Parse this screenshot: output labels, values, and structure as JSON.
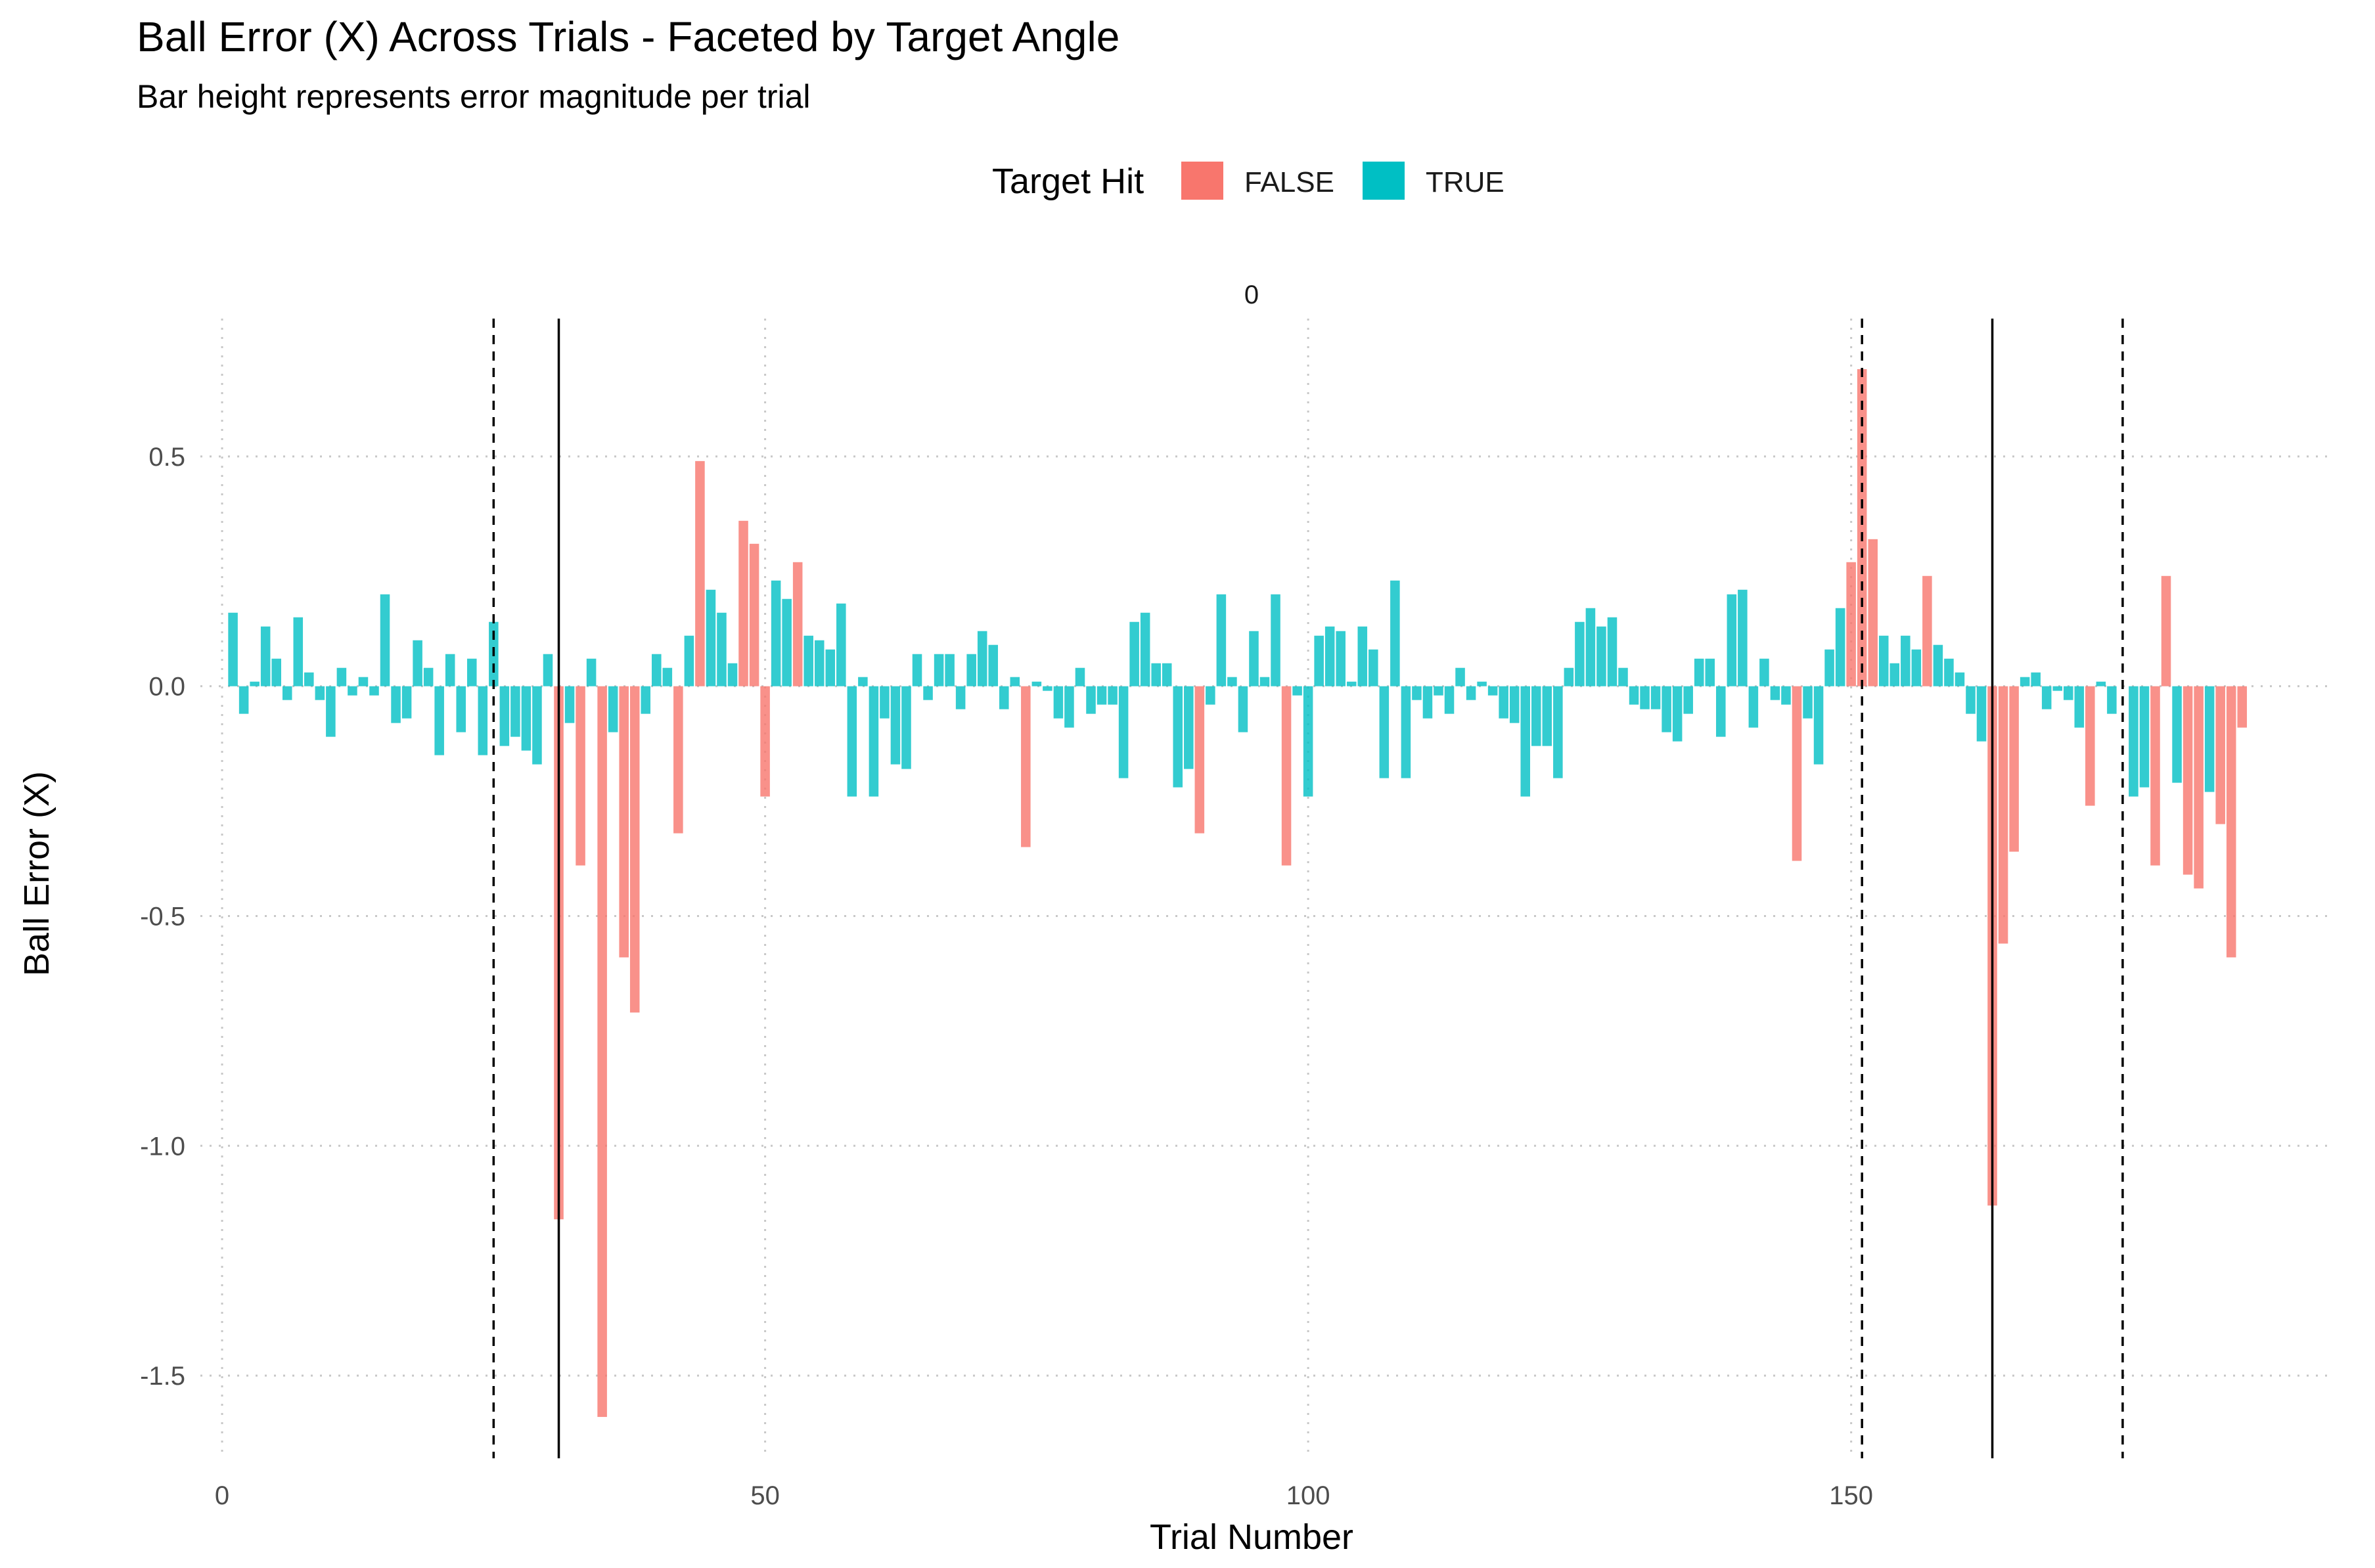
{
  "chart_data": {
    "type": "bar",
    "title": "Ball Error (X) Across Trials - Faceted by Target Angle",
    "subtitle": "Bar height represents error magnitude per trial",
    "facet_label": "0",
    "xlabel": "Trial Number",
    "ylabel": "Ball Error (X)",
    "xlim": [
      -2,
      194
    ],
    "ylim": [
      -1.68,
      0.8
    ],
    "x_ticks": [
      0,
      50,
      100,
      150
    ],
    "y_ticks": [
      0.5,
      0.0,
      -0.5,
      -1.0,
      -1.5
    ],
    "y_tick_labels": [
      "0.5",
      "0.0",
      "-0.5",
      "-1.0",
      "-1.5"
    ],
    "grid": "dotted major gridlines",
    "legend": {
      "title": "Target Hit",
      "position": "top",
      "entries": [
        {
          "label": "FALSE",
          "color": "#F8766D"
        },
        {
          "label": "TRUE",
          "color": "#00BFC4"
        }
      ]
    },
    "vlines": [
      {
        "x": 25,
        "style": "dashed"
      },
      {
        "x": 31,
        "style": "solid"
      },
      {
        "x": 151,
        "style": "dashed"
      },
      {
        "x": 163,
        "style": "solid"
      },
      {
        "x": 175,
        "style": "dashed"
      }
    ],
    "series": [
      {
        "name": "FALSE",
        "color": "#F8766D",
        "x": [
          31,
          33,
          35,
          37,
          38,
          42,
          44,
          48,
          49,
          50,
          53,
          74,
          90,
          98,
          145,
          150,
          151,
          152,
          157,
          163,
          164,
          165,
          172,
          178,
          179,
          181,
          182,
          184,
          185,
          186
        ],
        "values": [
          -1.16,
          -0.39,
          -1.59,
          -0.59,
          -0.71,
          -0.32,
          0.49,
          0.36,
          0.31,
          -0.24,
          0.27,
          -0.35,
          -0.32,
          -0.39,
          -0.38,
          0.27,
          0.69,
          0.32,
          0.24,
          -1.13,
          -0.56,
          -0.36,
          -0.26,
          -0.39,
          0.24,
          -0.41,
          -0.44,
          -0.3,
          -0.59,
          -0.09
        ]
      },
      {
        "name": "TRUE",
        "color": "#00BFC4",
        "x": [
          1,
          2,
          3,
          4,
          5,
          6,
          7,
          8,
          9,
          10,
          11,
          12,
          13,
          14,
          15,
          16,
          17,
          18,
          19,
          20,
          21,
          22,
          23,
          24,
          25,
          26,
          27,
          28,
          29,
          30,
          32,
          34,
          36,
          39,
          40,
          41,
          43,
          45,
          46,
          47,
          51,
          52,
          54,
          55,
          56,
          57,
          58,
          59,
          60,
          61,
          62,
          63,
          64,
          65,
          66,
          67,
          68,
          69,
          70,
          71,
          72,
          73,
          75,
          76,
          77,
          78,
          79,
          80,
          81,
          82,
          83,
          84,
          85,
          86,
          87,
          88,
          89,
          91,
          92,
          93,
          94,
          95,
          96,
          97,
          99,
          100,
          101,
          102,
          103,
          104,
          105,
          106,
          107,
          108,
          109,
          110,
          111,
          112,
          113,
          114,
          115,
          116,
          117,
          118,
          119,
          120,
          121,
          122,
          123,
          124,
          125,
          126,
          127,
          128,
          129,
          130,
          131,
          132,
          133,
          134,
          135,
          136,
          137,
          138,
          139,
          140,
          141,
          142,
          143,
          144,
          146,
          147,
          148,
          149,
          153,
          154,
          155,
          156,
          158,
          159,
          160,
          161,
          162,
          166,
          167,
          168,
          169,
          170,
          171,
          173,
          174,
          176,
          177,
          180,
          183
        ],
        "values": [
          0.16,
          -0.06,
          0.01,
          0.13,
          0.06,
          -0.03,
          0.15,
          0.03,
          -0.03,
          -0.11,
          0.04,
          -0.02,
          0.02,
          -0.02,
          0.2,
          -0.08,
          -0.07,
          0.1,
          0.04,
          -0.15,
          0.07,
          -0.1,
          0.06,
          -0.15,
          0.14,
          -0.13,
          -0.11,
          -0.14,
          -0.17,
          0.07,
          -0.08,
          0.06,
          -0.1,
          -0.06,
          0.07,
          0.04,
          0.11,
          0.21,
          0.16,
          0.05,
          0.23,
          0.19,
          0.11,
          0.1,
          0.08,
          0.18,
          -0.24,
          0.02,
          -0.24,
          -0.07,
          -0.17,
          -0.18,
          0.07,
          -0.03,
          0.07,
          0.07,
          -0.05,
          0.07,
          0.12,
          0.09,
          -0.05,
          0.02,
          0.01,
          -0.01,
          -0.07,
          -0.09,
          0.04,
          -0.06,
          -0.04,
          -0.04,
          -0.2,
          0.14,
          0.16,
          0.05,
          0.05,
          -0.22,
          -0.18,
          -0.04,
          0.2,
          0.02,
          -0.1,
          0.12,
          0.02,
          0.2,
          -0.02,
          -0.24,
          0.11,
          0.13,
          0.12,
          0.01,
          0.13,
          0.08,
          -0.2,
          0.23,
          -0.2,
          -0.03,
          -0.07,
          -0.02,
          -0.06,
          0.04,
          -0.03,
          0.01,
          -0.02,
          -0.07,
          -0.08,
          -0.24,
          -0.13,
          -0.13,
          -0.2,
          0.04,
          0.14,
          0.17,
          0.13,
          0.15,
          0.04,
          -0.04,
          -0.05,
          -0.05,
          -0.1,
          -0.12,
          -0.06,
          0.06,
          0.06,
          -0.11,
          0.2,
          0.21,
          -0.09,
          0.06,
          -0.03,
          -0.04,
          -0.07,
          -0.17,
          0.08,
          0.17,
          0.11,
          0.05,
          0.11,
          0.08,
          0.09,
          0.06,
          0.03,
          -0.06,
          -0.12,
          0.02,
          0.03,
          -0.05,
          -0.01,
          -0.03,
          -0.09,
          0.01,
          -0.06,
          -0.24,
          -0.22,
          -0.21,
          -0.23
        ]
      }
    ]
  }
}
